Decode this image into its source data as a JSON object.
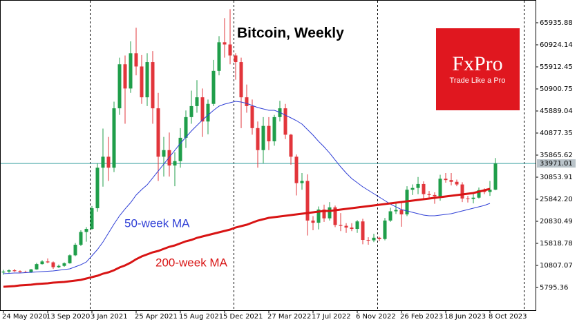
{
  "chart_data": {
    "type": "candlestick",
    "title": "Bitcoin, Weekly",
    "logo": {
      "brand": "FxPro",
      "tagline": "Trade Like a Pro"
    },
    "categories": [
      "24 May 2020",
      null,
      null,
      null,
      null,
      null,
      null,
      null,
      "13 Sep 2020",
      null,
      null,
      null,
      null,
      null,
      null,
      null,
      "3 Jan 2021",
      null,
      null,
      null,
      null,
      null,
      null,
      null,
      "25 Apr 2021",
      null,
      null,
      null,
      null,
      null,
      null,
      null,
      "15 Aug 2021",
      null,
      null,
      null,
      null,
      null,
      null,
      null,
      "5 Dec 2021",
      null,
      null,
      null,
      null,
      null,
      null,
      null,
      "27 Mar 2022",
      null,
      null,
      null,
      null,
      null,
      null,
      null,
      "17 Jul 2022",
      null,
      null,
      null,
      null,
      null,
      null,
      null,
      "6 Nov 2022",
      null,
      null,
      null,
      null,
      null,
      null,
      null,
      "26 Feb 2023",
      null,
      null,
      null,
      null,
      null,
      null,
      null,
      "18 Jun 2023",
      null,
      null,
      null,
      null,
      null,
      null,
      null,
      "8 Oct 2023",
      null
    ],
    "open": [
      9200,
      9400,
      9700,
      9500,
      9300,
      9200,
      9900,
      11100,
      11700,
      11500,
      10400,
      10700,
      11300,
      13100,
      15500,
      18400,
      19100,
      23800,
      33000,
      35500,
      33000,
      46500,
      56500,
      51000,
      59000,
      56000,
      49000,
      57000,
      46500,
      35500,
      37000,
      33500,
      34500,
      39800,
      44500,
      47000,
      49000,
      43500,
      47500,
      55000,
      61500,
      61000,
      58500,
      57000,
      49000,
      47000,
      42000,
      37000,
      42500,
      39000,
      44500,
      46500,
      40500,
      35500,
      29500,
      30000,
      21000,
      20500,
      23500,
      21500,
      24000,
      20000,
      19800,
      19400,
      19100,
      20800,
      16600,
      16500,
      17100,
      16800,
      21000,
      23100,
      23400,
      22400,
      28000,
      28400,
      29300,
      27000,
      26800,
      26500,
      30500,
      30200,
      29800,
      29200,
      26000,
      25900,
      26200,
      27900,
      27500,
      28000
    ],
    "high": [
      9800,
      9900,
      10000,
      9700,
      9600,
      10000,
      11400,
      12000,
      12400,
      11700,
      11000,
      11500,
      13300,
      15900,
      18800,
      19500,
      24300,
      34000,
      41900,
      40000,
      48000,
      58000,
      58500,
      61700,
      64800,
      58600,
      59000,
      59500,
      50000,
      40000,
      41000,
      36500,
      42000,
      46000,
      50500,
      52900,
      51000,
      48500,
      57500,
      62900,
      67000,
      69000,
      59000,
      58000,
      51900,
      48500,
      43500,
      44500,
      44500,
      45000,
      48200,
      47500,
      40700,
      36000,
      31800,
      31500,
      22000,
      24200,
      24600,
      25200,
      24400,
      22700,
      20400,
      20400,
      21100,
      21400,
      17200,
      18000,
      17300,
      21600,
      23900,
      25200,
      25100,
      28800,
      29200,
      30900,
      29900,
      27700,
      27400,
      31400,
      31800,
      31800,
      30300,
      29700,
      26600,
      27400,
      28500,
      28300,
      30000,
      35200
    ],
    "low": [
      8700,
      9100,
      9300,
      9100,
      9100,
      9100,
      9800,
      11000,
      11300,
      10000,
      10200,
      10500,
      11200,
      12900,
      15200,
      16200,
      18900,
      23000,
      28700,
      30000,
      32000,
      45000,
      43000,
      50000,
      54000,
      47500,
      47000,
      43000,
      30000,
      31000,
      31000,
      28800,
      33000,
      37500,
      43000,
      45500,
      40000,
      40600,
      47000,
      54000,
      58000,
      56500,
      53000,
      42000,
      45500,
      40500,
      33000,
      34000,
      37000,
      38000,
      43500,
      39500,
      33700,
      26700,
      28000,
      17600,
      18800,
      19000,
      20700,
      21000,
      19500,
      18600,
      18200,
      18600,
      18200,
      15600,
      15500,
      16100,
      16300,
      16500,
      20700,
      22500,
      19600,
      22000,
      26800,
      27000,
      25800,
      25800,
      24800,
      25500,
      29600,
      29000,
      28800,
      25200,
      25100,
      24900,
      26000,
      27000,
      26600,
      27900
    ],
    "close": [
      9400,
      9700,
      9500,
      9300,
      9200,
      9900,
      11100,
      11700,
      11500,
      10400,
      10700,
      11300,
      13100,
      15500,
      18400,
      19100,
      23800,
      33000,
      35500,
      33000,
      46500,
      56500,
      51000,
      59000,
      56000,
      49000,
      57000,
      46500,
      35500,
      37000,
      33500,
      34500,
      39800,
      44500,
      47000,
      49000,
      43500,
      47500,
      55000,
      61500,
      61000,
      58500,
      57000,
      49000,
      47000,
      42000,
      37000,
      42500,
      39000,
      44500,
      46500,
      40500,
      35500,
      29500,
      30000,
      21000,
      20500,
      23500,
      21500,
      24000,
      20000,
      19800,
      19400,
      19100,
      20800,
      16600,
      16500,
      17100,
      16800,
      21000,
      23100,
      23400,
      22400,
      28000,
      28400,
      29300,
      27000,
      26800,
      26500,
      30500,
      30200,
      29800,
      29200,
      26000,
      25900,
      26200,
      27900,
      27500,
      28000,
      33971.01
    ],
    "up_color": "#1f9e4a",
    "down_color": "#e2353b",
    "lines": [
      {
        "label": "50-week MA",
        "color": "#2f3fd6",
        "width": 1,
        "values": [
          8926,
          9004,
          9082,
          9082,
          9161,
          9239,
          9317,
          9396,
          9474,
          9552,
          9709,
          9866,
          10022,
          10492,
          10962,
          11588,
          12998,
          14408,
          16130,
          18166,
          20202,
          22082,
          23648,
          25058,
          26781,
          28033,
          29130,
          30696,
          32262,
          33828,
          35395,
          36961,
          38527,
          39937,
          41346,
          42599,
          43852,
          44948,
          46045,
          46985,
          47454,
          47768,
          48081,
          47924,
          47611,
          47141,
          46671,
          46358,
          46045,
          46045,
          45575,
          44948,
          44322,
          43695,
          42912,
          41659,
          40406,
          38997,
          37744,
          36334,
          34768,
          33202,
          31792,
          30539,
          29600,
          28660,
          27877,
          27094,
          26311,
          25528,
          24744,
          24118,
          23492,
          23178,
          22865,
          22552,
          22239,
          22082,
          22082,
          22239,
          22395,
          22552,
          22865,
          23178,
          23492,
          23805,
          24118,
          24431,
          24901,
          null
        ]
      },
      {
        "label": "200-week MA",
        "color": "#d81414",
        "width": 3,
        "values": [
          5950,
          6028,
          6107,
          6263,
          6342,
          6420,
          6577,
          6655,
          6734,
          6890,
          6969,
          7047,
          7204,
          7360,
          7517,
          7830,
          8144,
          8457,
          8927,
          9240,
          9710,
          10336,
          10806,
          11433,
          12216,
          12842,
          13312,
          13782,
          14095,
          14565,
          15035,
          15348,
          15818,
          16288,
          16601,
          17071,
          17384,
          17697,
          18011,
          18324,
          18637,
          18950,
          19420,
          19733,
          20047,
          20517,
          20987,
          21300,
          21613,
          21770,
          21926,
          22083,
          22240,
          22396,
          22553,
          22710,
          22866,
          23023,
          23179,
          23179,
          23336,
          23493,
          23649,
          23806,
          23963,
          24120,
          24276,
          24433,
          24589,
          24746,
          24903,
          25059,
          25216,
          25373,
          25529,
          25686,
          25843,
          25999,
          26156,
          26312,
          26469,
          26626,
          26782,
          26939,
          27096,
          27252,
          27566,
          27879,
          28192,
          null
        ]
      }
    ],
    "current_price": 33971.01,
    "current_price_color": "#3fa3a3",
    "ylim": [
      627.2,
      71104.4
    ],
    "yticks": [
      65935.88,
      60924.14,
      55912.45,
      50900.75,
      45889.04,
      40877.35,
      35865.62,
      30853.91,
      {
        "value": 25842.2,
        "label": "25842.20"
      },
      20830.49,
      15818.78,
      10807.07,
      5795.36
    ]
  }
}
